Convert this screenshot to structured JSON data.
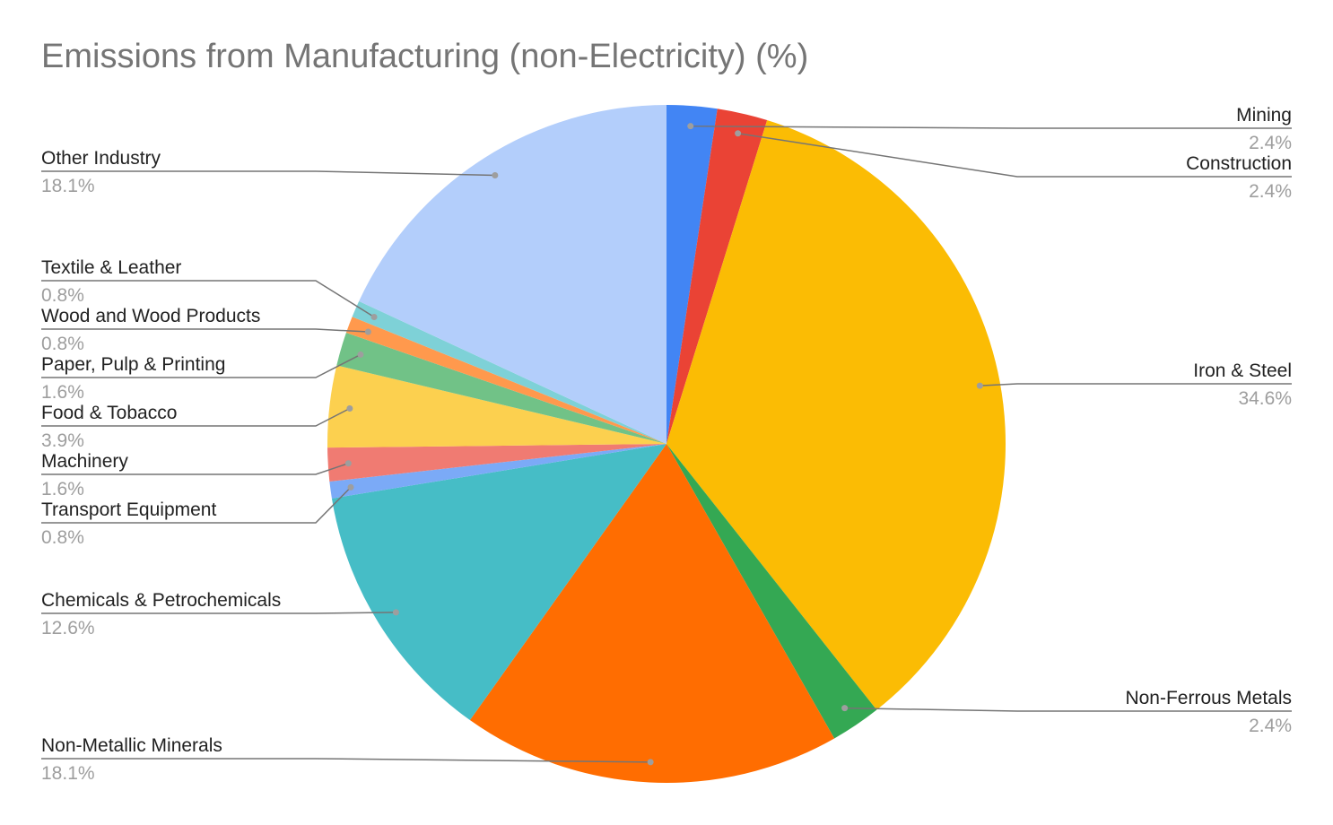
{
  "chart_data": {
    "type": "pie",
    "title": "Emissions from Manufacturing (non-Electricity) (%)",
    "slices": [
      {
        "label": "Mining",
        "value": 2.4,
        "value_label": "2.4%",
        "color": "#4285F4"
      },
      {
        "label": "Construction",
        "value": 2.4,
        "value_label": "2.4%",
        "color": "#EA4335"
      },
      {
        "label": "Iron & Steel",
        "value": 34.6,
        "value_label": "34.6%",
        "color": "#FBBC04"
      },
      {
        "label": "Non-Ferrous Metals",
        "value": 2.4,
        "value_label": "2.4%",
        "color": "#34A853"
      },
      {
        "label": "Non-Metallic Minerals",
        "value": 18.1,
        "value_label": "18.1%",
        "color": "#FF6D01"
      },
      {
        "label": "Chemicals & Petrochemicals",
        "value": 12.6,
        "value_label": "12.6%",
        "color": "#46BDC6"
      },
      {
        "label": "Transport Equipment",
        "value": 0.8,
        "value_label": "0.8%",
        "color": "#7BAAF7"
      },
      {
        "label": "Machinery",
        "value": 1.6,
        "value_label": "1.6%",
        "color": "#F07B72"
      },
      {
        "label": "Food & Tobacco",
        "value": 3.9,
        "value_label": "3.9%",
        "color": "#FCD04F"
      },
      {
        "label": "Paper, Pulp & Printing",
        "value": 1.6,
        "value_label": "1.6%",
        "color": "#71C287"
      },
      {
        "label": "Wood and Wood Products",
        "value": 0.8,
        "value_label": "0.8%",
        "color": "#FF994D"
      },
      {
        "label": "Textile & Leather",
        "value": 0.8,
        "value_label": "0.8%",
        "color": "#7ED1D7"
      },
      {
        "label": "Other Industry",
        "value": 18.1,
        "value_label": "18.1%",
        "color": "#B3CEFB"
      }
    ]
  }
}
